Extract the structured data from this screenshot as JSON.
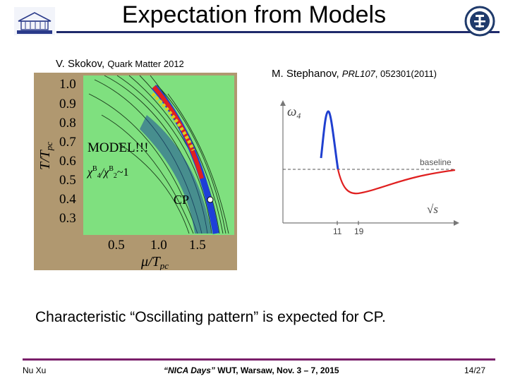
{
  "slide": {
    "title": "Expectation from Models",
    "left_caption": {
      "author": "V. Skokov,",
      "venue": "Quark Matter 2012"
    },
    "right_caption": {
      "author": "M. Stephanov,",
      "journal": "PRL107",
      "ref": ", 052301(2011)"
    },
    "main_text": "Characteristic “Oscillating pattern” is expected for CP.",
    "footer": {
      "author": "Nu Xu",
      "event": "“NICA Days”",
      "venue": "WUT, Warsaw, Nov. 3 – 7, 2015",
      "page": "14/27"
    }
  },
  "left_figure": {
    "y_axis_label": "T/T",
    "y_axis_label_sub": "pc",
    "x_axis_label": "μ/T",
    "x_axis_label_sub": "pc",
    "y_ticks": [
      "1.0",
      "0.9",
      "0.8",
      "0.7",
      "0.6",
      "0.5",
      "0.4",
      "0.3"
    ],
    "x_ticks": [
      "0.5",
      "1.0",
      "1.5"
    ],
    "model_label": "MODEL!!!",
    "chi_label": "χ",
    "chi_sup1": "B",
    "chi_sub1": "4",
    "chi_sep": "/χ",
    "chi_sup2": "B",
    "chi_sub2": "2",
    "chi_tail": "~1",
    "cp_label": "CP",
    "colors": {
      "background": "#7fe07f",
      "dark": "#1a6e1a",
      "band_blue": "#1e3fd8",
      "band_red": "#e02020",
      "frame": "#b09870"
    }
  },
  "right_figure": {
    "y_label": "ω",
    "y_label_sub": "4",
    "x_label": "√s",
    "baseline_label": "baseline",
    "x_ticks": [
      "11",
      "19"
    ],
    "colors": {
      "curve_blue": "#2040d0",
      "curve_red": "#e02020"
    }
  }
}
